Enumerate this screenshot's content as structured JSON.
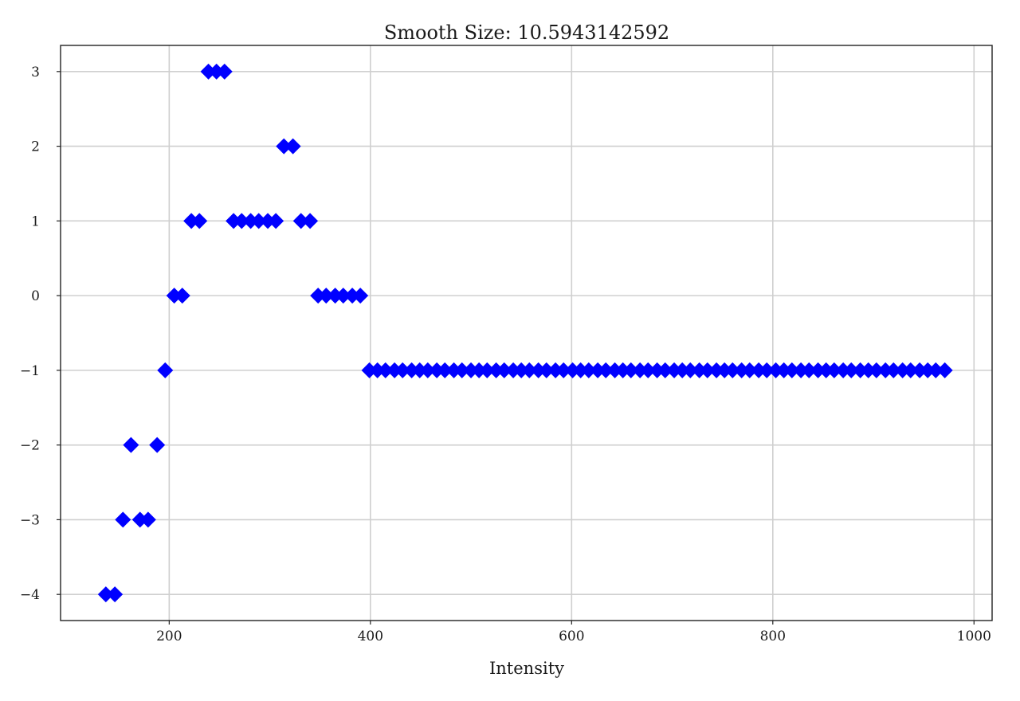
{
  "chart_data": {
    "type": "scatter",
    "title": "Smooth Size: 10.5943142592",
    "xlabel": "Intensity",
    "ylabel": "",
    "xlim": [
      92,
      1018
    ],
    "ylim": [
      -4.35,
      3.35
    ],
    "xticks": [
      200,
      400,
      600,
      800,
      1000
    ],
    "yticks": [
      -4,
      -3,
      -2,
      -1,
      0,
      1,
      2,
      3
    ],
    "grid": true,
    "marker": "diamond",
    "color": "#0000ff",
    "series": [
      {
        "x": [
          137,
          146,
          154,
          162,
          171,
          179,
          188,
          196,
          205,
          213,
          222,
          230,
          239,
          247,
          255,
          264,
          272,
          281,
          289,
          298,
          306,
          314,
          323,
          331,
          340,
          348,
          356,
          365,
          373,
          382,
          390,
          399,
          407,
          415,
          424,
          432,
          441,
          449,
          457,
          466,
          474,
          483,
          491,
          500,
          508,
          516,
          525,
          533,
          542,
          550,
          558,
          567,
          575,
          584,
          592,
          601,
          609,
          617,
          626,
          634,
          643,
          651,
          659,
          668,
          676,
          685,
          693,
          702,
          710,
          718,
          727,
          735,
          744,
          752,
          760,
          769,
          777,
          786,
          794,
          803,
          811,
          819,
          828,
          836,
          845,
          853,
          861,
          870,
          878,
          887,
          895,
          903,
          912,
          920,
          929,
          937,
          946,
          954,
          962,
          971
        ],
        "y": [
          -4,
          -4,
          -3,
          -2,
          -3,
          -3,
          -2,
          -1,
          0,
          0,
          1,
          1,
          3,
          3,
          3,
          1,
          1,
          1,
          1,
          1,
          1,
          2,
          2,
          1,
          1,
          0,
          0,
          0,
          0,
          0,
          0,
          -1,
          -1,
          -1,
          -1,
          -1,
          -1,
          -1,
          -1,
          -1,
          -1,
          -1,
          -1,
          -1,
          -1,
          -1,
          -1,
          -1,
          -1,
          -1,
          -1,
          -1,
          -1,
          -1,
          -1,
          -1,
          -1,
          -1,
          -1,
          -1,
          -1,
          -1,
          -1,
          -1,
          -1,
          -1,
          -1,
          -1,
          -1,
          -1,
          -1,
          -1,
          -1,
          -1,
          -1,
          -1,
          -1,
          -1,
          -1,
          -1,
          -1,
          -1,
          -1,
          -1,
          -1,
          -1,
          -1,
          -1,
          -1,
          -1,
          -1,
          -1,
          -1,
          -1,
          -1,
          -1,
          -1,
          -1,
          -1,
          -1
        ]
      }
    ]
  }
}
